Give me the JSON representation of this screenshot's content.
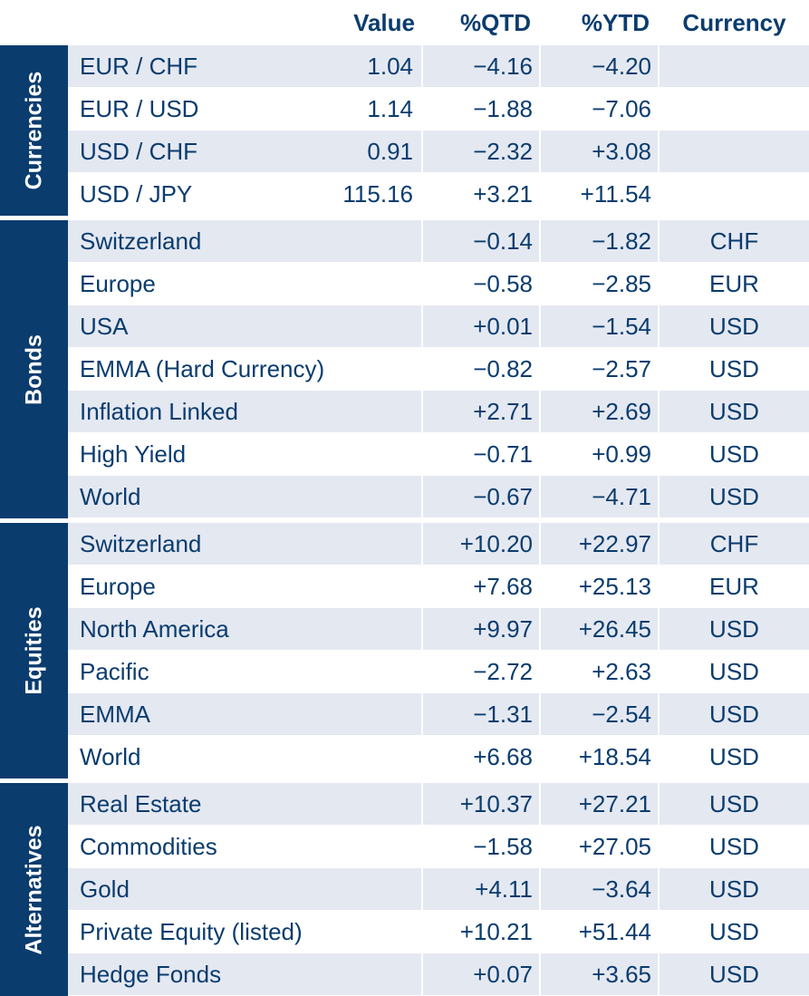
{
  "headers": {
    "value": "Value",
    "qtd": "%QTD",
    "ytd": "%YTD",
    "currency": "Currency"
  },
  "groups": [
    {
      "label": "Currencies",
      "rows": [
        {
          "name": "EUR / CHF",
          "value": "1.04",
          "qtd": "−4.16",
          "ytd": "−4.20",
          "currency": ""
        },
        {
          "name": "EUR / USD",
          "value": "1.14",
          "qtd": "−1.88",
          "ytd": "−7.06",
          "currency": ""
        },
        {
          "name": "USD / CHF",
          "value": "0.91",
          "qtd": "−2.32",
          "ytd": "+3.08",
          "currency": ""
        },
        {
          "name": "USD / JPY",
          "value": "115.16",
          "qtd": "+3.21",
          "ytd": "+11.54",
          "currency": ""
        }
      ]
    },
    {
      "label": "Bonds",
      "rows": [
        {
          "name": "Switzerland",
          "value": "",
          "qtd": "−0.14",
          "ytd": "−1.82",
          "currency": "CHF"
        },
        {
          "name": "Europe",
          "value": "",
          "qtd": "−0.58",
          "ytd": "−2.85",
          "currency": "EUR"
        },
        {
          "name": "USA",
          "value": "",
          "qtd": "+0.01",
          "ytd": "−1.54",
          "currency": "USD"
        },
        {
          "name": "EMMA (Hard Currency)",
          "value": "",
          "qtd": "−0.82",
          "ytd": "−2.57",
          "currency": "USD"
        },
        {
          "name": "Inflation Linked",
          "value": "",
          "qtd": "+2.71",
          "ytd": "+2.69",
          "currency": "USD"
        },
        {
          "name": "High Yield",
          "value": "",
          "qtd": "−0.71",
          "ytd": "+0.99",
          "currency": "USD"
        },
        {
          "name": "World",
          "value": "",
          "qtd": "−0.67",
          "ytd": "−4.71",
          "currency": "USD"
        }
      ]
    },
    {
      "label": "Equities",
      "rows": [
        {
          "name": "Switzerland",
          "value": "",
          "qtd": "+10.20",
          "ytd": "+22.97",
          "currency": "CHF"
        },
        {
          "name": "Europe",
          "value": "",
          "qtd": "+7.68",
          "ytd": "+25.13",
          "currency": "EUR"
        },
        {
          "name": "North America",
          "value": "",
          "qtd": "+9.97",
          "ytd": "+26.45",
          "currency": "USD"
        },
        {
          "name": "Pacific",
          "value": "",
          "qtd": "−2.72",
          "ytd": "+2.63",
          "currency": "USD"
        },
        {
          "name": "EMMA",
          "value": "",
          "qtd": "−1.31",
          "ytd": "−2.54",
          "currency": "USD"
        },
        {
          "name": "World",
          "value": "",
          "qtd": "+6.68",
          "ytd": "+18.54",
          "currency": "USD"
        }
      ]
    },
    {
      "label": "Alternatives",
      "rows": [
        {
          "name": "Real Estate",
          "value": "",
          "qtd": "+10.37",
          "ytd": "+27.21",
          "currency": "USD"
        },
        {
          "name": "Commodities",
          "value": "",
          "qtd": "−1.58",
          "ytd": "+27.05",
          "currency": "USD"
        },
        {
          "name": "Gold",
          "value": "",
          "qtd": "+4.11",
          "ytd": "−3.64",
          "currency": "USD"
        },
        {
          "name": "Private Equity (listed)",
          "value": "",
          "qtd": "+10.21",
          "ytd": "+51.44",
          "currency": "USD"
        },
        {
          "name": "Hedge Fonds",
          "value": "",
          "qtd": "+0.07",
          "ytd": "+3.65",
          "currency": "USD"
        }
      ]
    }
  ],
  "colors": {
    "navy": "#0a3c6e",
    "row_shade": "#e4e8f1",
    "background": "#ffffff"
  }
}
